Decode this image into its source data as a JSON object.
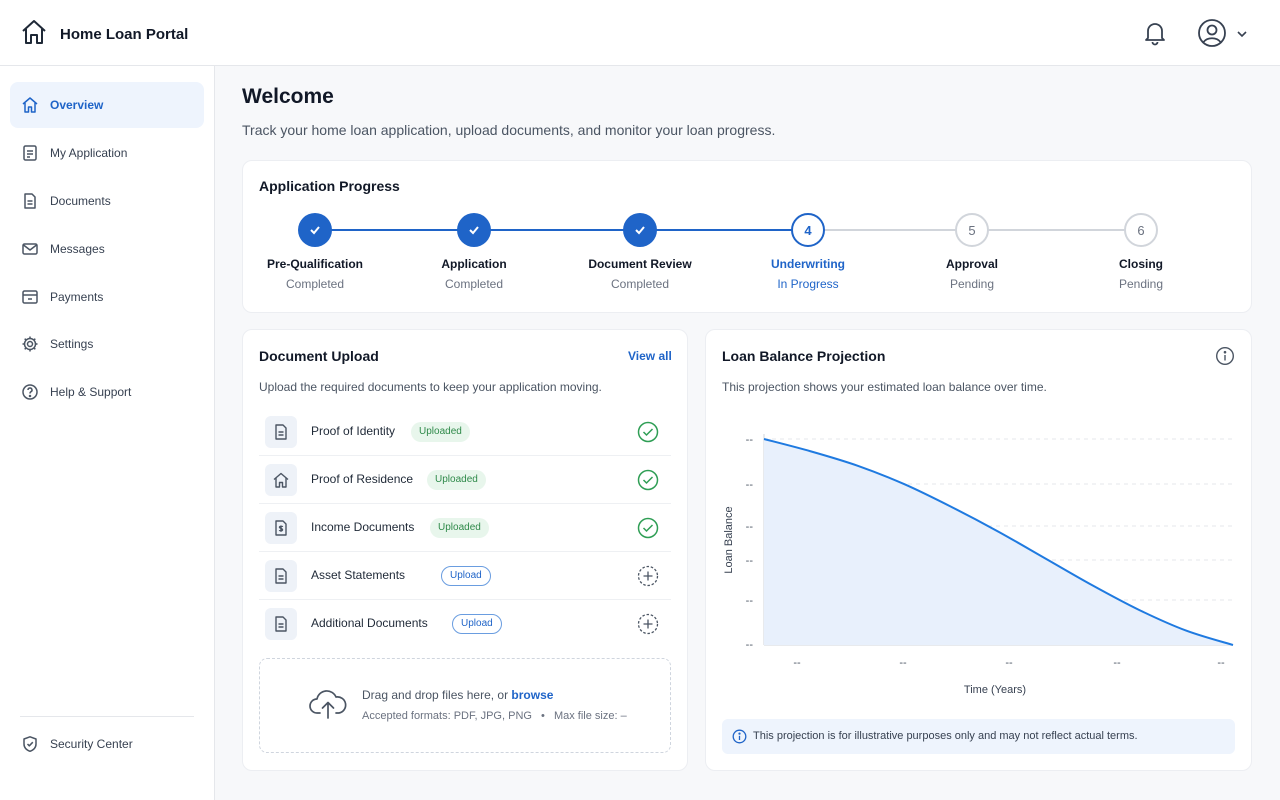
{
  "app": {
    "title": "Home Loan Portal"
  },
  "header": {
    "bell_icon": "bell-icon",
    "avatar_icon": "user-circle-icon"
  },
  "sidebar": {
    "items": [
      {
        "label": "Overview",
        "icon": "home-icon",
        "active": true
      },
      {
        "label": "My Application",
        "icon": "clipboard-icon"
      },
      {
        "label": "Documents",
        "icon": "document-icon"
      },
      {
        "label": "Messages",
        "icon": "mail-icon"
      },
      {
        "label": "Payments",
        "icon": "wallet-icon"
      },
      {
        "label": "Settings",
        "icon": "gear-icon"
      },
      {
        "label": "Help & Support",
        "icon": "help-icon"
      }
    ],
    "footer_item": {
      "label": "Security Center",
      "icon": "shield-icon"
    }
  },
  "page": {
    "title": "Welcome",
    "subtitle": "Track your home loan application, upload documents, and monitor your loan progress."
  },
  "progress": {
    "title": "Application Progress",
    "steps": [
      {
        "number": "1",
        "label": "Pre-Qualification",
        "status": "Completed",
        "state": "done"
      },
      {
        "number": "2",
        "label": "Application",
        "status": "Completed",
        "state": "done"
      },
      {
        "number": "3",
        "label": "Document Review",
        "status": "Completed",
        "state": "done"
      },
      {
        "number": "4",
        "label": "Underwriting",
        "status": "In Progress",
        "state": "current"
      },
      {
        "number": "5",
        "label": "Approval",
        "status": "Pending",
        "state": "pending"
      },
      {
        "number": "6",
        "label": "Closing",
        "status": "Pending",
        "state": "pending"
      }
    ]
  },
  "upload": {
    "title": "Document Upload",
    "view_all": "View all",
    "description": "Upload the required documents to keep your application moving.",
    "documents": [
      {
        "name": "Proof of Identity",
        "badge": "Uploaded",
        "state": "uploaded",
        "icon": "document-icon"
      },
      {
        "name": "Proof of Residence",
        "badge": "Uploaded",
        "state": "uploaded",
        "icon": "home-icon"
      },
      {
        "name": "Income Documents",
        "badge": "Uploaded",
        "state": "uploaded",
        "icon": "dollar-document-icon"
      },
      {
        "name": "Asset Statements",
        "badge": "Upload",
        "state": "pending",
        "icon": "document-icon"
      },
      {
        "name": "Additional Documents",
        "badge": "Upload",
        "state": "pending",
        "icon": "document-icon"
      }
    ],
    "dropzone": {
      "prefix": "Drag and drop files here, or ",
      "browse": "browse",
      "formats": "Accepted formats: PDF, JPG, PNG",
      "separator": "•",
      "max_size": "Max file size: –"
    }
  },
  "projection": {
    "title": "Loan Balance Projection",
    "description": "This projection shows your estimated loan balance over time.",
    "note": "This projection is for illustrative purposes only and may not reflect actual terms."
  },
  "chart_data": {
    "type": "area",
    "xlabel": "Time (Years)",
    "ylabel": "Loan Balance",
    "x_tick_labels": [
      "--",
      "--",
      "--",
      "--",
      "--"
    ],
    "y_tick_labels": [
      "--",
      "--",
      "--",
      "--",
      "--",
      "--"
    ],
    "x": [
      0,
      0.1,
      0.2,
      0.3,
      0.4,
      0.5,
      0.6,
      0.7,
      0.8,
      0.9,
      1.0
    ],
    "y": [
      1.0,
      0.94,
      0.87,
      0.78,
      0.67,
      0.55,
      0.42,
      0.29,
      0.17,
      0.07,
      0.0
    ],
    "xlim": [
      0,
      1
    ],
    "ylim": [
      0,
      1
    ],
    "grid": true,
    "color": "#1f7ae0"
  },
  "colors": {
    "accent": "#1f64c8",
    "success": "#2f9e55",
    "pending_border": "#d1d5db"
  }
}
